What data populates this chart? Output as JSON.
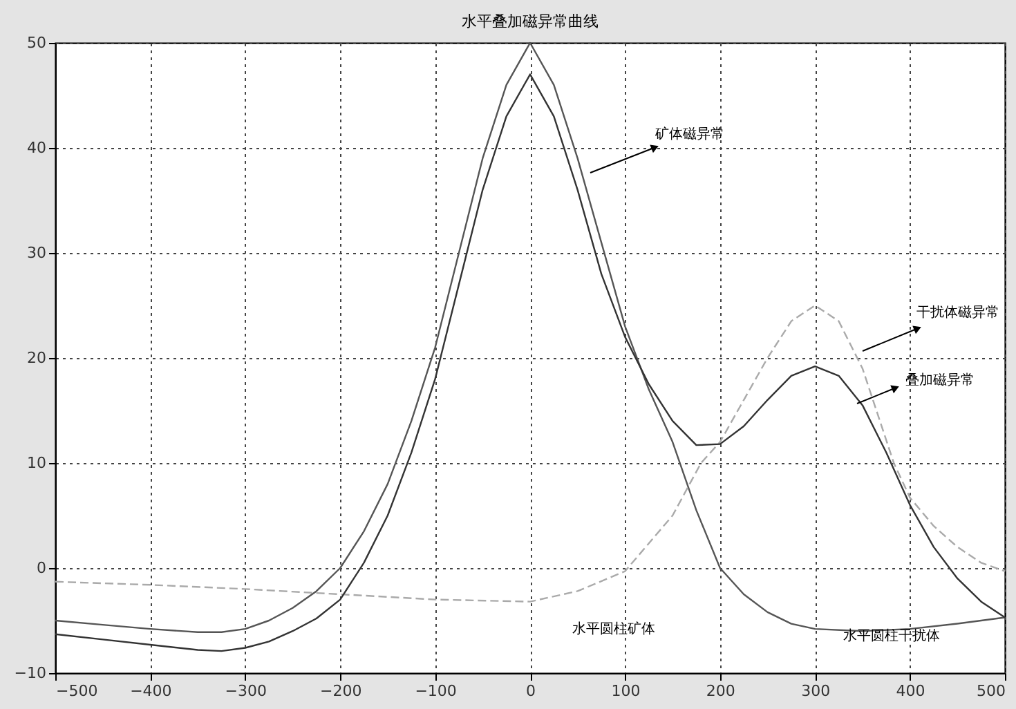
{
  "chart_data": {
    "type": "line",
    "title": "水平叠加磁异常曲线",
    "series": [
      {
        "color": "#555555",
        "x": [
          -500,
          -450,
          -400,
          -350,
          -325,
          -300,
          -275,
          -250,
          -225,
          -200,
          -175,
          -150,
          -125,
          -100,
          -75,
          -50,
          -25,
          0,
          25,
          50,
          75,
          100,
          125,
          150,
          175,
          200,
          225,
          250,
          275,
          300,
          350,
          400,
          450,
          500
        ],
        "values": [
          -5.0,
          -5.4,
          -5.8,
          -6.1,
          -6.1,
          -5.8,
          -5.0,
          -3.8,
          -2.2,
          0,
          3.5,
          8,
          14,
          21,
          30,
          39,
          46,
          50,
          46,
          39,
          31,
          23,
          17,
          12,
          5.5,
          0,
          -2.5,
          -4.2,
          -5.3,
          -5.8,
          -6.0,
          -5.8,
          -5.3,
          -4.7
        ]
      },
      {
        "color": "#aaaaaa",
        "line_style": "dashed",
        "x": [
          -500,
          -400,
          -300,
          -200,
          -100,
          0,
          50,
          100,
          150,
          180,
          200,
          225,
          250,
          275,
          300,
          325,
          350,
          383,
          400,
          425,
          450,
          475,
          500
        ],
        "values": [
          -1.3,
          -1.6,
          -2.0,
          -2.5,
          -3.0,
          -3.2,
          -2.2,
          -0.3,
          5,
          10,
          12,
          16,
          20,
          23.5,
          25,
          23.5,
          19,
          10,
          6.7,
          4,
          2,
          0.5,
          -0.3
        ]
      },
      {
        "color": "#333333",
        "x": [
          -500,
          -450,
          -400,
          -350,
          -325,
          -300,
          -275,
          -250,
          -225,
          -200,
          -175,
          -150,
          -125,
          -100,
          -75,
          -50,
          -25,
          0,
          25,
          50,
          75,
          100,
          125,
          150,
          175,
          200,
          225,
          250,
          275,
          300,
          325,
          350,
          375,
          400,
          425,
          450,
          475,
          500
        ],
        "values": [
          -6.3,
          -6.8,
          -7.3,
          -7.8,
          -7.9,
          -7.6,
          -7.0,
          -6.0,
          -4.8,
          -3.0,
          0.5,
          5,
          11,
          18,
          27,
          36,
          43,
          47,
          43,
          36,
          28,
          22,
          17.5,
          14,
          11.7,
          11.8,
          13.5,
          16,
          18.3,
          19.2,
          18.3,
          15.5,
          11,
          6,
          2,
          -1,
          -3.2,
          -4.7
        ]
      }
    ],
    "annotations": [
      "矿体磁异常",
      "干扰体磁异常",
      "叠加磁异常",
      "水平圆柱矿体",
      "水平圆柱干扰体"
    ],
    "xlim": [
      -500,
      500
    ],
    "xticks": [
      -500,
      -400,
      -300,
      -200,
      -100,
      0,
      100,
      200,
      300,
      400,
      500
    ],
    "ylim": [
      -10,
      50
    ],
    "yticks": [
      -10,
      0,
      10,
      20,
      30,
      40,
      50
    ],
    "grid": true,
    "marker": "none"
  }
}
